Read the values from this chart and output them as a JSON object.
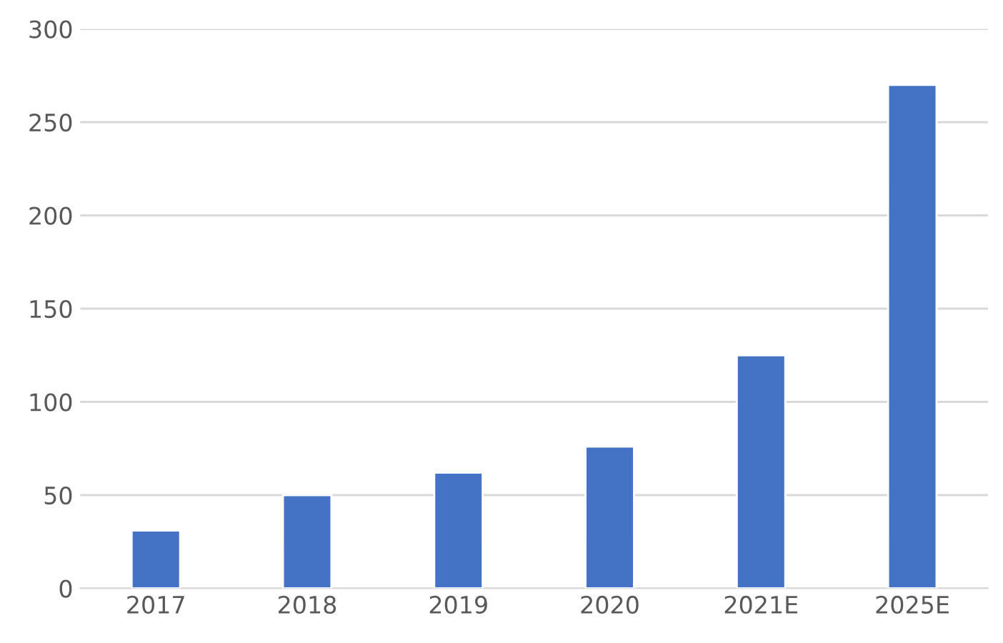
{
  "chart_data": {
    "type": "bar",
    "categories": [
      "2017",
      "2018",
      "2019",
      "2020",
      "2021E",
      "2025E"
    ],
    "values": [
      31,
      50,
      62,
      76,
      125,
      270
    ],
    "color": "#4472c4",
    "ylim": [
      0,
      300
    ],
    "yticks": [
      0,
      50,
      100,
      150,
      200,
      250,
      300
    ],
    "grid": "y"
  }
}
